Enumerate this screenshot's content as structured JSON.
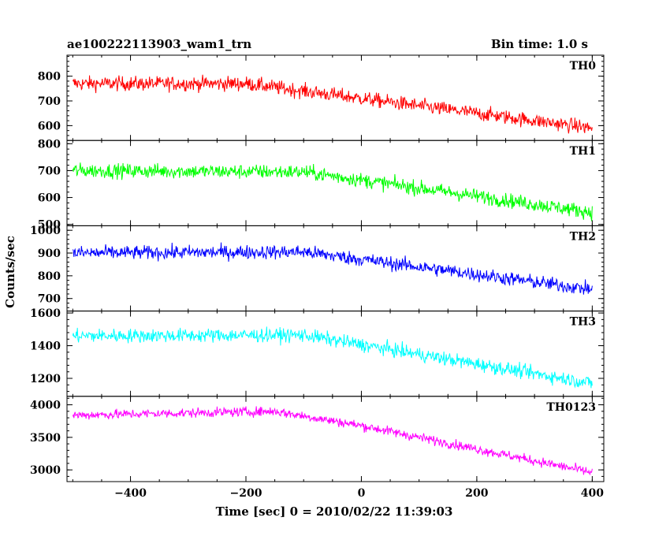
{
  "header": {
    "title": "ae100222113903_wam1_trn",
    "bin_time": "Bin time: 1.0 s"
  },
  "chart_data": {
    "type": "line",
    "xlabel": "Time [sec] 0 = 2010/02/22 11:39:03",
    "ylabel": "Counts/sec",
    "xlim": [
      -510,
      420
    ],
    "x_ticks": [
      -400,
      -200,
      0,
      200,
      400
    ],
    "x_tick_labels": [
      "−400",
      "−200",
      "0",
      "200",
      "400"
    ],
    "x_range": [
      -500,
      400
    ],
    "grid": false,
    "panels": [
      {
        "name": "TH0",
        "color": "#ff0000",
        "ylim": [
          540,
          885
        ],
        "yticks": [
          600,
          700,
          800
        ],
        "ytick_labels": [
          "600",
          "700",
          "800"
        ],
        "trend": [
          [
            -500,
            770
          ],
          [
            -200,
            770
          ],
          [
            400,
            590
          ]
        ],
        "noise": 38
      },
      {
        "name": "TH1",
        "color": "#00ff00",
        "ylim": [
          495,
          812
        ],
        "yticks": [
          500,
          600,
          700,
          800
        ],
        "ytick_labels": [
          "500",
          "600",
          "700",
          "800"
        ],
        "trend": [
          [
            -500,
            700
          ],
          [
            -100,
            695
          ],
          [
            400,
            545
          ]
        ],
        "noise": 35
      },
      {
        "name": "TH2",
        "color": "#0000ff",
        "ylim": [
          645,
          1020
        ],
        "yticks": [
          700,
          800,
          900,
          1000
        ],
        "ytick_labels": [
          "700",
          "800",
          "900",
          "1000"
        ],
        "trend": [
          [
            -500,
            900
          ],
          [
            -100,
            905
          ],
          [
            400,
            740
          ]
        ],
        "noise": 40
      },
      {
        "name": "TH3",
        "color": "#00ffff",
        "ylim": [
          1090,
          1612
        ],
        "yticks": [
          1200,
          1400,
          1600
        ],
        "ytick_labels": [
          "1200",
          "1400",
          "1600"
        ],
        "trend": [
          [
            -500,
            1460
          ],
          [
            -100,
            1465
          ],
          [
            400,
            1170
          ]
        ],
        "noise": 55
      },
      {
        "name": "TH0123",
        "color": "#ff00ff",
        "ylim": [
          2820,
          4130
        ],
        "yticks": [
          3000,
          3500,
          4000
        ],
        "ytick_labels": [
          "3000",
          "3500",
          "4000"
        ],
        "trend": [
          [
            -500,
            3840
          ],
          [
            -150,
            3900
          ],
          [
            0,
            3680
          ],
          [
            400,
            2960
          ]
        ],
        "noise": 95
      }
    ]
  }
}
